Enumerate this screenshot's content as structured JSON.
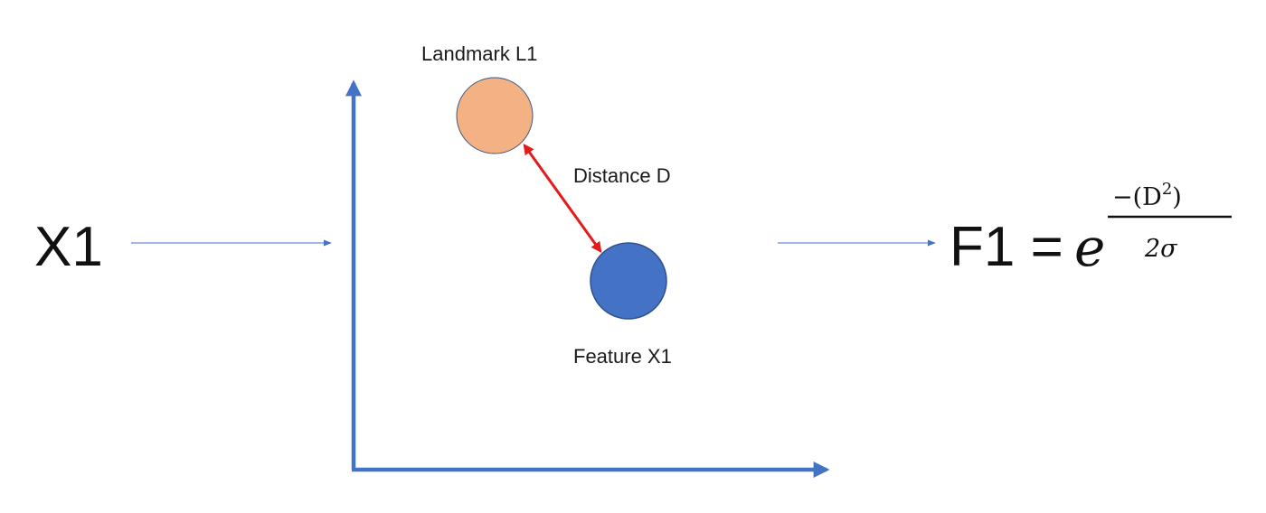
{
  "input_label": "X1",
  "landmark_label": "Landmark L1",
  "distance_label": "Distance D",
  "feature_label": "Feature X1",
  "formula": {
    "lhs": "F1 =",
    "base": "e",
    "numerator": "−(D",
    "exponent": "2",
    "numerator_close": ")",
    "denominator": "2σ"
  },
  "colors": {
    "landmark_fill": "#F4B183",
    "feature_fill": "#4472C4",
    "axis": "#4472C4",
    "distance_arrow": "#E41B1B",
    "flow_arrow": "#4472C4"
  }
}
